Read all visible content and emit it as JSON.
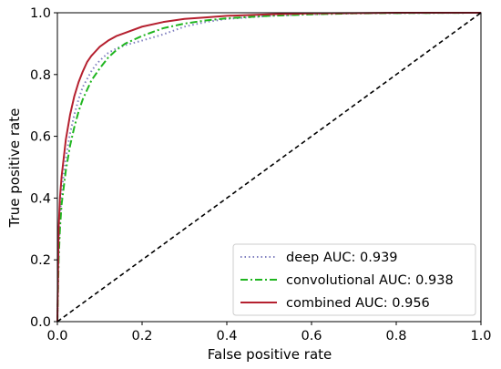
{
  "chart_data": {
    "type": "line",
    "title": "",
    "xlabel": "False positive rate",
    "ylabel": "True positive rate",
    "xlim": [
      0.0,
      1.0
    ],
    "ylim": [
      0.0,
      1.0
    ],
    "xticks": [
      "0.0",
      "0.2",
      "0.4",
      "0.6",
      "0.8",
      "1.0"
    ],
    "yticks": [
      "0.0",
      "0.2",
      "0.4",
      "0.6",
      "0.8",
      "1.0"
    ],
    "grid": false,
    "legend_position": "bottom-right",
    "series": [
      {
        "name": "deep AUC: 0.939",
        "color": "#7f7fbf",
        "style": "dotted",
        "x": [
          0.0,
          0.003,
          0.006,
          0.01,
          0.02,
          0.03,
          0.04,
          0.05,
          0.06,
          0.07,
          0.08,
          0.09,
          0.1,
          0.12,
          0.14,
          0.16,
          0.2,
          0.25,
          0.3,
          0.35,
          0.4,
          0.5,
          0.6,
          0.7,
          0.8,
          1.0
        ],
        "y": [
          0.0,
          0.22,
          0.33,
          0.42,
          0.53,
          0.61,
          0.67,
          0.72,
          0.76,
          0.785,
          0.81,
          0.83,
          0.845,
          0.87,
          0.885,
          0.895,
          0.91,
          0.93,
          0.955,
          0.97,
          0.98,
          0.99,
          0.995,
          0.998,
          0.999,
          1.0
        ]
      },
      {
        "name": "convolutional AUC: 0.938",
        "color": "#1fb51f",
        "style": "dashdot",
        "x": [
          0.0,
          0.003,
          0.006,
          0.01,
          0.02,
          0.03,
          0.04,
          0.05,
          0.06,
          0.07,
          0.08,
          0.09,
          0.1,
          0.12,
          0.14,
          0.16,
          0.2,
          0.25,
          0.3,
          0.35,
          0.4,
          0.5,
          0.6,
          0.7,
          0.8,
          1.0
        ],
        "y": [
          0.0,
          0.2,
          0.3,
          0.38,
          0.49,
          0.57,
          0.63,
          0.68,
          0.72,
          0.75,
          0.78,
          0.8,
          0.82,
          0.855,
          0.88,
          0.9,
          0.925,
          0.95,
          0.965,
          0.975,
          0.982,
          0.99,
          0.995,
          0.998,
          0.999,
          1.0
        ]
      },
      {
        "name": "combined AUC: 0.956",
        "color": "#b5202f",
        "style": "solid",
        "x": [
          0.0,
          0.003,
          0.006,
          0.01,
          0.02,
          0.03,
          0.04,
          0.05,
          0.06,
          0.07,
          0.08,
          0.09,
          0.1,
          0.12,
          0.14,
          0.16,
          0.2,
          0.25,
          0.3,
          0.35,
          0.4,
          0.5,
          0.6,
          0.7,
          0.8,
          1.0
        ],
        "y": [
          0.0,
          0.3,
          0.4,
          0.47,
          0.59,
          0.67,
          0.73,
          0.775,
          0.81,
          0.84,
          0.86,
          0.875,
          0.89,
          0.91,
          0.925,
          0.935,
          0.955,
          0.97,
          0.98,
          0.985,
          0.99,
          0.995,
          0.998,
          0.999,
          1.0,
          1.0
        ]
      },
      {
        "name": "",
        "color": "#000000",
        "style": "dashed",
        "x": [
          0.0,
          1.0
        ],
        "y": [
          0.0,
          1.0
        ]
      }
    ]
  }
}
